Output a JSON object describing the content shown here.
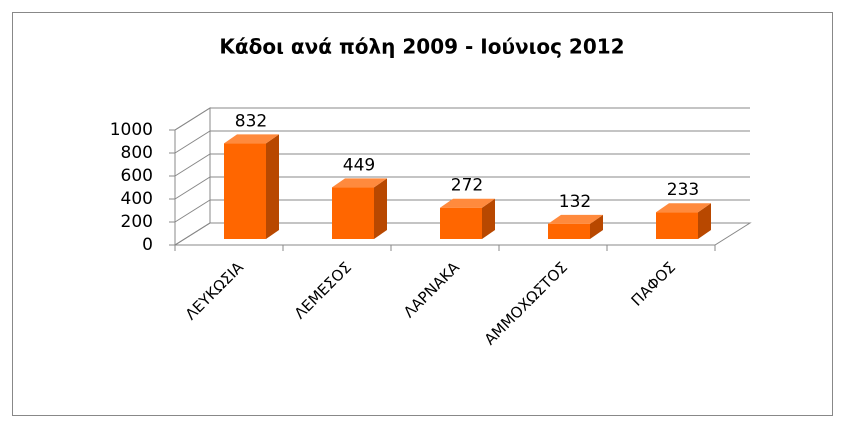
{
  "chart_data": {
    "type": "bar3d",
    "title": "Κάδοι ανά πόλη 2009 - Ιούνιος 2012",
    "categories": [
      "ΛΕΥΚΩΣΙΑ",
      "ΛΕΜΕΣΟΣ",
      "ΛΑΡΝΑΚΑ",
      "ΑΜΜΟΧΩΣΤΟΣ",
      "ΠΑΦΟΣ"
    ],
    "values": [
      832,
      449,
      272,
      132,
      233
    ],
    "color": "#ff6600",
    "ylim": [
      0,
      1000
    ],
    "yticks": [
      0,
      200,
      400,
      600,
      800,
      1000
    ],
    "grid": true
  }
}
